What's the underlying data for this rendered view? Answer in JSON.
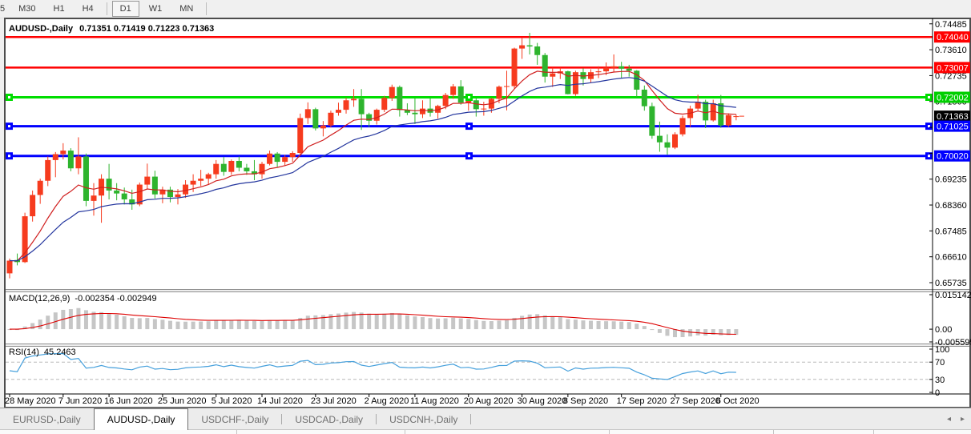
{
  "toolbar": {
    "timeframes": [
      {
        "label": "5",
        "active": false
      },
      {
        "label": "M30",
        "active": false
      },
      {
        "label": "H1",
        "active": false
      },
      {
        "label": "H4",
        "active": false
      },
      {
        "label": "D1",
        "active": true
      },
      {
        "label": "W1",
        "active": false
      },
      {
        "label": "MN",
        "active": false
      }
    ]
  },
  "chart": {
    "title": "AUDUSD-,Daily",
    "ohlc_text": "0.71351 0.71419 0.71223 0.71363",
    "open": "0.71351",
    "high": "0.71419",
    "low": "0.71223",
    "close": "0.71363"
  },
  "indicators": {
    "macd": {
      "label": "MACD(12,26,9)",
      "values_text": "-0.002354 -0.002949"
    },
    "rsi": {
      "label": "RSI(14)",
      "values_text": "45.2463"
    }
  },
  "tabs": {
    "items": [
      {
        "label": "EURUSD-,Daily",
        "active": false
      },
      {
        "label": "AUDUSD-,Daily",
        "active": true
      },
      {
        "label": "USDCHF-,Daily",
        "active": false
      },
      {
        "label": "USDCAD-,Daily",
        "active": false
      },
      {
        "label": "USDCNH-,Daily",
        "active": false
      }
    ],
    "left_arrow": "◂",
    "right_arrow": "▸"
  },
  "chart_data": {
    "type": "candlestick",
    "instrument": "AUDUSD-",
    "timeframe": "Daily",
    "colors": {
      "up": "#f63b1e",
      "down": "#2eb42e",
      "ma_fast": "#d01f1f",
      "ma_slow": "#24369e",
      "macd_bar": "#c6c6c6",
      "macd_signal": "#dd0000",
      "rsi_line": "#46a0dc",
      "level_dash": "#b8b8b8",
      "axis_text": "#000000",
      "background": "#ffffff"
    },
    "y_axis": {
      "price_max": 0.7456,
      "price_min": 0.656,
      "tick_labels": [
        "0.74485",
        "0.73610",
        "0.72735",
        "0.71860",
        "0.70985",
        "0.70110",
        "0.69235",
        "0.68360",
        "0.67485",
        "0.66610",
        "0.65735"
      ]
    },
    "badges": [
      {
        "text": "0.74040",
        "price": 0.7404,
        "color": "#ff0000",
        "text_color": "#ffffff"
      },
      {
        "text": "0.73007",
        "price": 0.73007,
        "color": "#ff0000",
        "text_color": "#ffffff"
      },
      {
        "text": "0.72002",
        "price": 0.72002,
        "color": "#00cf00",
        "text_color": "#ffffff"
      },
      {
        "text": "0.71363",
        "price": 0.71363,
        "color": "#000000",
        "text_color": "#ffffff"
      },
      {
        "text": "0.71025",
        "price": 0.71025,
        "color": "#0000ff",
        "text_color": "#ffffff"
      },
      {
        "text": "0.70020",
        "price": 0.7002,
        "color": "#0000ff",
        "text_color": "#ffffff"
      }
    ],
    "hlines": [
      {
        "price": 0.7404,
        "color": "#ff0000",
        "width": 2.5,
        "handles": false
      },
      {
        "price": 0.73007,
        "color": "#ff0000",
        "width": 2.5,
        "handles": false
      },
      {
        "price": 0.72002,
        "color": "#00dd00",
        "width": 3,
        "handles": true
      },
      {
        "price": 0.71025,
        "color": "#0000ff",
        "width": 3,
        "handles": true
      },
      {
        "price": 0.7002,
        "color": "#0000ff",
        "width": 3,
        "handles": true
      }
    ],
    "moving_averages": [
      {
        "period": 10,
        "method": "ema",
        "color": "#d01f1f"
      },
      {
        "period": 21,
        "method": "ema",
        "color": "#24369e"
      }
    ],
    "macd": {
      "params": [
        12,
        26,
        9
      ],
      "main_value": -0.002354,
      "signal_value": -0.002949,
      "axis_max": 0.015142,
      "axis_min": -0.005595,
      "axis_labels": [
        "0.015142",
        "0.00",
        "-0.005595"
      ]
    },
    "rsi": {
      "period": 14,
      "value": 45.2463,
      "levels": [
        70,
        30
      ],
      "axis_labels": [
        "100",
        "70",
        "30",
        "0"
      ]
    },
    "x_labels": [
      {
        "text": "28 May 2020",
        "i": 0
      },
      {
        "text": "7 Jun 2020",
        "i": 7
      },
      {
        "text": "16 Jun 2020",
        "i": 13
      },
      {
        "text": "25 Jun 2020",
        "i": 20
      },
      {
        "text": "5 Jul 2020",
        "i": 27
      },
      {
        "text": "14 Jul 2020",
        "i": 33
      },
      {
        "text": "23 Jul 2020",
        "i": 40
      },
      {
        "text": "2 Aug 2020",
        "i": 47
      },
      {
        "text": "11 Aug 2020",
        "i": 53
      },
      {
        "text": "20 Aug 2020",
        "i": 60
      },
      {
        "text": "30 Aug 2020",
        "i": 67
      },
      {
        "text": "8 Sep 2020",
        "i": 73
      },
      {
        "text": "17 Sep 2020",
        "i": 80
      },
      {
        "text": "27 Sep 2020",
        "i": 87
      },
      {
        "text": "6 Oct 2020",
        "i": 93
      }
    ],
    "candles": [
      [
        0.6605,
        0.6655,
        0.6588,
        0.6648
      ],
      [
        0.665,
        0.6672,
        0.6632,
        0.6643
      ],
      [
        0.6643,
        0.681,
        0.664,
        0.6798
      ],
      [
        0.6798,
        0.6885,
        0.678,
        0.687
      ],
      [
        0.687,
        0.6925,
        0.684,
        0.6918
      ],
      [
        0.6918,
        0.7,
        0.69,
        0.6988
      ],
      [
        0.6988,
        0.7015,
        0.693,
        0.7008
      ],
      [
        0.7008,
        0.7045,
        0.699,
        0.702
      ],
      [
        0.702,
        0.7028,
        0.695,
        0.696
      ],
      [
        0.696,
        0.7065,
        0.694,
        0.7
      ],
      [
        0.7,
        0.701,
        0.6832,
        0.685
      ],
      [
        0.685,
        0.691,
        0.68,
        0.6868
      ],
      [
        0.6868,
        0.694,
        0.6776,
        0.6925
      ],
      [
        0.6925,
        0.6975,
        0.6855,
        0.6885
      ],
      [
        0.6885,
        0.691,
        0.6852,
        0.6875
      ],
      [
        0.6875,
        0.6895,
        0.6838,
        0.6855
      ],
      [
        0.6855,
        0.6888,
        0.682,
        0.6838
      ],
      [
        0.6838,
        0.6912,
        0.6832,
        0.6905
      ],
      [
        0.6905,
        0.6976,
        0.689,
        0.6932
      ],
      [
        0.6932,
        0.6952,
        0.6858,
        0.6872
      ],
      [
        0.6872,
        0.6898,
        0.6842,
        0.6888
      ],
      [
        0.6888,
        0.6898,
        0.6845,
        0.6863
      ],
      [
        0.6863,
        0.689,
        0.6838,
        0.6872
      ],
      [
        0.6872,
        0.692,
        0.686,
        0.6905
      ],
      [
        0.6905,
        0.694,
        0.688,
        0.6918
      ],
      [
        0.6918,
        0.6955,
        0.69,
        0.6925
      ],
      [
        0.6925,
        0.6945,
        0.6905,
        0.694
      ],
      [
        0.694,
        0.6988,
        0.6925,
        0.6975
      ],
      [
        0.6975,
        0.6998,
        0.6935,
        0.6948
      ],
      [
        0.6948,
        0.699,
        0.6938,
        0.6985
      ],
      [
        0.6985,
        0.7,
        0.695,
        0.6962
      ],
      [
        0.6962,
        0.6975,
        0.6938,
        0.695
      ],
      [
        0.695,
        0.6988,
        0.692,
        0.694
      ],
      [
        0.694,
        0.6982,
        0.6925,
        0.6975
      ],
      [
        0.6975,
        0.702,
        0.697,
        0.701
      ],
      [
        0.701,
        0.7015,
        0.6965,
        0.6982
      ],
      [
        0.6982,
        0.7005,
        0.697,
        0.6998
      ],
      [
        0.6998,
        0.7018,
        0.6982,
        0.7012
      ],
      [
        0.7012,
        0.7145,
        0.7005,
        0.713
      ],
      [
        0.713,
        0.7183,
        0.711,
        0.716
      ],
      [
        0.716,
        0.7165,
        0.7088,
        0.7095
      ],
      [
        0.7095,
        0.712,
        0.7068,
        0.7105
      ],
      [
        0.7105,
        0.7155,
        0.7098,
        0.7148
      ],
      [
        0.7148,
        0.7182,
        0.7138,
        0.7158
      ],
      [
        0.7158,
        0.7198,
        0.7145,
        0.719
      ],
      [
        0.719,
        0.7228,
        0.7168,
        0.7195
      ],
      [
        0.7195,
        0.7228,
        0.709,
        0.7143
      ],
      [
        0.7143,
        0.7148,
        0.71,
        0.7121
      ],
      [
        0.7121,
        0.7162,
        0.7108,
        0.7158
      ],
      [
        0.7158,
        0.7205,
        0.715,
        0.7198
      ],
      [
        0.7198,
        0.7243,
        0.7188,
        0.7235
      ],
      [
        0.7235,
        0.724,
        0.7135,
        0.7157
      ],
      [
        0.7157,
        0.718,
        0.714,
        0.7148
      ],
      [
        0.7148,
        0.7197,
        0.711,
        0.7143
      ],
      [
        0.7143,
        0.719,
        0.713,
        0.7162
      ],
      [
        0.7162,
        0.7198,
        0.7135,
        0.7148
      ],
      [
        0.7148,
        0.7175,
        0.7128,
        0.7171
      ],
      [
        0.7171,
        0.7215,
        0.716,
        0.7208
      ],
      [
        0.7208,
        0.7245,
        0.7195,
        0.7237
      ],
      [
        0.7237,
        0.7258,
        0.7175,
        0.7182
      ],
      [
        0.7182,
        0.7205,
        0.7155,
        0.719
      ],
      [
        0.719,
        0.7198,
        0.7135,
        0.716
      ],
      [
        0.716,
        0.7185,
        0.7138,
        0.7162
      ],
      [
        0.7162,
        0.7198,
        0.7148,
        0.7195
      ],
      [
        0.7195,
        0.724,
        0.718,
        0.7236
      ],
      [
        0.7236,
        0.729,
        0.7156,
        0.7238
      ],
      [
        0.7238,
        0.7368,
        0.723,
        0.7365
      ],
      [
        0.7365,
        0.74,
        0.733,
        0.7376
      ],
      [
        0.7376,
        0.7418,
        0.7345,
        0.7372
      ],
      [
        0.7372,
        0.7384,
        0.731,
        0.7343
      ],
      [
        0.7343,
        0.735,
        0.725,
        0.727
      ],
      [
        0.727,
        0.73,
        0.7235,
        0.7281
      ],
      [
        0.7281,
        0.73,
        0.7262,
        0.7288
      ],
      [
        0.7288,
        0.729,
        0.721,
        0.7211
      ],
      [
        0.7211,
        0.729,
        0.7205,
        0.7285
      ],
      [
        0.7285,
        0.7298,
        0.724,
        0.7262
      ],
      [
        0.7262,
        0.7295,
        0.725,
        0.7285
      ],
      [
        0.7285,
        0.7305,
        0.7265,
        0.7288
      ],
      [
        0.7288,
        0.7318,
        0.7275,
        0.73
      ],
      [
        0.73,
        0.7345,
        0.7285,
        0.7305
      ],
      [
        0.7305,
        0.732,
        0.7265,
        0.7297
      ],
      [
        0.7297,
        0.731,
        0.727,
        0.729
      ],
      [
        0.729,
        0.7292,
        0.72,
        0.7226
      ],
      [
        0.7226,
        0.724,
        0.7155,
        0.717
      ],
      [
        0.717,
        0.7182,
        0.706,
        0.707
      ],
      [
        0.707,
        0.7118,
        0.7016,
        0.7048
      ],
      [
        0.7048,
        0.7075,
        0.7006,
        0.703
      ],
      [
        0.703,
        0.7082,
        0.7025,
        0.7075
      ],
      [
        0.7075,
        0.7138,
        0.7068,
        0.713
      ],
      [
        0.713,
        0.7172,
        0.71,
        0.7162
      ],
      [
        0.7162,
        0.7209,
        0.7155,
        0.7185
      ],
      [
        0.7185,
        0.7192,
        0.7096,
        0.7122
      ],
      [
        0.7122,
        0.7192,
        0.7118,
        0.718
      ],
      [
        0.718,
        0.7208,
        0.7097,
        0.7105
      ],
      [
        0.7105,
        0.7146,
        0.71,
        0.714
      ],
      [
        0.71351,
        0.71419,
        0.71223,
        0.71363
      ]
    ]
  }
}
